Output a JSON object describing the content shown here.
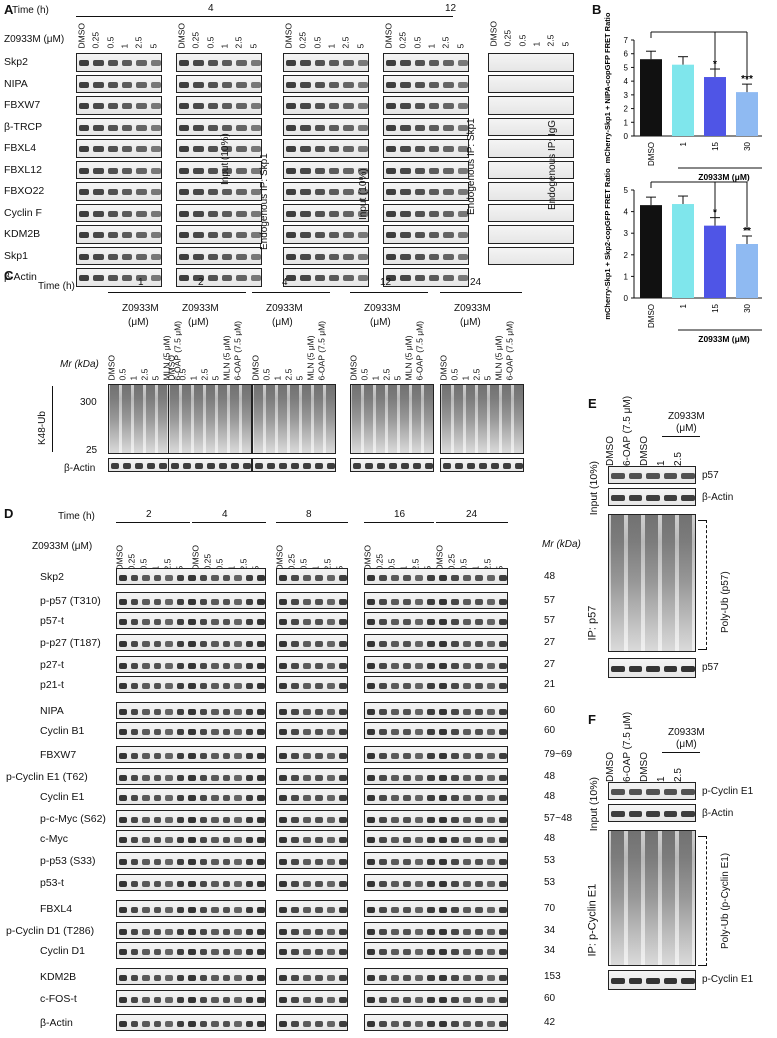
{
  "panels": {
    "A": "A",
    "B": "B",
    "C": "C",
    "D": "D",
    "E": "E",
    "F": "F"
  },
  "panelA": {
    "time_label": "Time (h)",
    "time_4": "4",
    "time_12": "12",
    "conc_label": "Z0933M (μM)",
    "lanes": [
      "DMSO",
      "0.25",
      "0.5",
      "1",
      "2.5",
      "5"
    ],
    "rows": [
      "Skp2",
      "NIPA",
      "FBXW7",
      "β-TRCP",
      "FBXL4",
      "FBXL12",
      "FBXO22",
      "Cyclin F",
      "KDM2B",
      "Skp1",
      "β-Actin"
    ],
    "input_label": "Input (10%)",
    "ip_skp1": "Endogenous IP: Skp1",
    "ip_igg": "Endogenous IP: IgG"
  },
  "panelB": {
    "top_ylabel": "mCherry-Skp1 + NIPA-copGFP FRET Ratio",
    "bottom_ylabel": "mCherry-Skp1 + Skp2-copGFP FRET Ratio",
    "xlabel": "Z0933M (μM)",
    "top_sig": [
      "*",
      "***"
    ],
    "bottom_sig": [
      "*",
      "**"
    ]
  },
  "chart_data": [
    {
      "type": "bar",
      "categories": [
        "DMSO",
        "1",
        "15",
        "30"
      ],
      "values": [
        5.6,
        5.2,
        4.3,
        3.2
      ],
      "ylim": [
        0,
        7
      ],
      "yticks": [
        "0",
        "1",
        "2",
        "3",
        "4",
        "5",
        "6",
        "7"
      ],
      "colors": [
        "#111111",
        "#7fe6ec",
        "#4f55e6",
        "#8fbaf2"
      ]
    },
    {
      "type": "bar",
      "categories": [
        "DMSO",
        "1",
        "15",
        "30"
      ],
      "values": [
        4.3,
        4.35,
        3.35,
        2.5
      ],
      "ylim": [
        0,
        5
      ],
      "yticks": [
        "0",
        "1",
        "2",
        "3",
        "4",
        "5"
      ],
      "colors": [
        "#111111",
        "#7fe6ec",
        "#4f55e6",
        "#8fbaf2"
      ]
    }
  ],
  "panelC": {
    "time_label": "Time (h)",
    "times": [
      "1",
      "2",
      "4",
      "12",
      "24"
    ],
    "drug": "Z0933M",
    "unit": "(μM)",
    "lanes": [
      "DMSO",
      "0.5",
      "1",
      "2.5",
      "5",
      "MLN (5 μM)",
      "6-OAP (7.5 μM)"
    ],
    "mr_label": "Mr (kDa)",
    "mw_top": "300",
    "mw_bottom": "25",
    "ub_label": "K48-Ub",
    "actin": "β-Actin"
  },
  "panelD": {
    "time_label": "Time (h)",
    "times": [
      "2",
      "4",
      "8",
      "16",
      "24"
    ],
    "conc_label": "Z0933M (μM)",
    "lanes": [
      "DMSO",
      "0.25",
      "0.5",
      "1",
      "2.5",
      "5"
    ],
    "mr_label": "Mr (kDa)",
    "rows": [
      {
        "name": "Skp2",
        "mw": "48"
      },
      {
        "name": "p-p57 (T310)",
        "mw": "57"
      },
      {
        "name": "p57-t",
        "mw": "57"
      },
      {
        "name": "p-p27 (T187)",
        "mw": "27"
      },
      {
        "name": "p27-t",
        "mw": "27"
      },
      {
        "name": "p21-t",
        "mw": "21"
      },
      {
        "name": "NIPA",
        "mw": "60"
      },
      {
        "name": "Cyclin B1",
        "mw": "60"
      },
      {
        "name": "FBXW7",
        "mw": "79~69"
      },
      {
        "name": "p-Cyclin E1 (T62)",
        "mw": "48"
      },
      {
        "name": "Cyclin E1",
        "mw": "48"
      },
      {
        "name": "p-c-Myc (S62)",
        "mw": "57~48"
      },
      {
        "name": "c-Myc",
        "mw": "48"
      },
      {
        "name": "p-p53 (S33)",
        "mw": "53"
      },
      {
        "name": "p53-t",
        "mw": "53"
      },
      {
        "name": "FBXL4",
        "mw": "70"
      },
      {
        "name": "p-Cyclin D1 (T286)",
        "mw": "34"
      },
      {
        "name": "Cyclin D1",
        "mw": "34"
      },
      {
        "name": "KDM2B",
        "mw": "153"
      },
      {
        "name": "c-FOS-t",
        "mw": "60"
      },
      {
        "name": "β-Actin",
        "mw": "42"
      }
    ]
  },
  "panelE": {
    "lanes": [
      "DMSO",
      "6-OAP (7.5 μM)",
      "DMSO",
      "1",
      "2.5"
    ],
    "drug": "Z0933M",
    "unit": "(μM)",
    "input_label": "Input (10%)",
    "ip_label": "IP: p57",
    "rows": [
      "p57",
      "β-Actin"
    ],
    "poly_ub": "Poly-Ub (p57)",
    "bottom": "p57"
  },
  "panelF": {
    "lanes": [
      "DMSO",
      "6-OAP (7.5 μM)",
      "DMSO",
      "1",
      "2.5"
    ],
    "drug": "Z0933M",
    "unit": "(μM)",
    "input_label": "Input (10%)",
    "ip_label": "IP: p-Cyclin E1",
    "rows": [
      "p-Cyclin E1",
      "β-Actin"
    ],
    "poly_ub": "Poly-Ub (p-Cyclin E1)",
    "bottom": "p-Cyclin E1"
  }
}
